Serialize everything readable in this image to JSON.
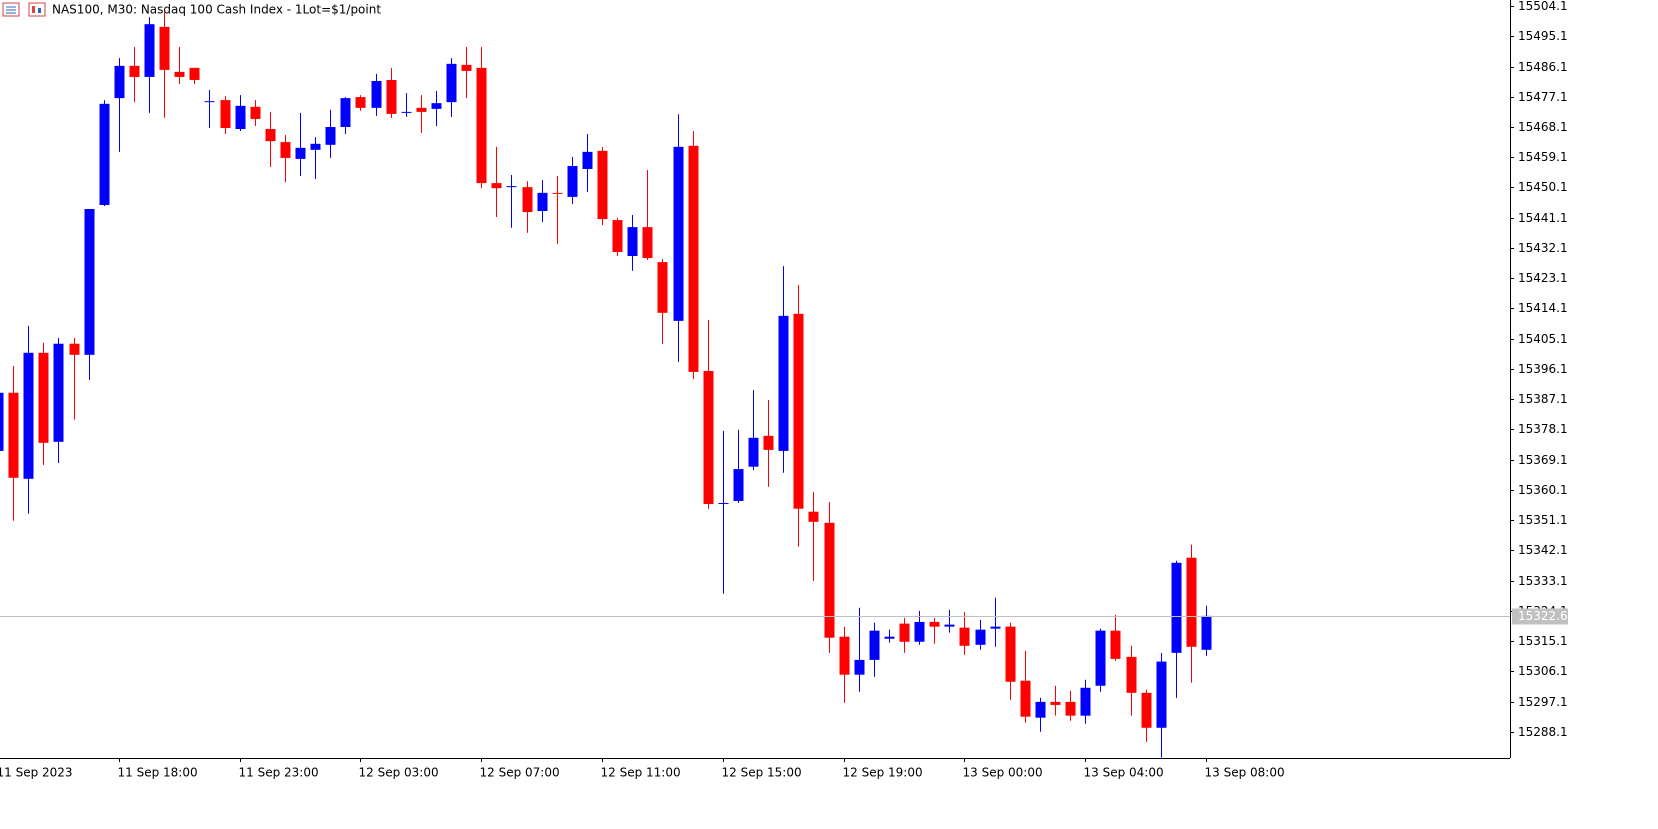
{
  "chart_data": {
    "type": "candlestick",
    "title": "NAS100, M30:  Nasdaq 100 Cash Index - 1Lot=$1/point",
    "categories": [
      "11 Sep 2023",
      null,
      null,
      null,
      null,
      null,
      null,
      null,
      "11 Sep 18:00",
      null,
      null,
      null,
      null,
      null,
      null,
      null,
      "11 Sep 23:00",
      null,
      null,
      null,
      null,
      null,
      null,
      null,
      "12 Sep 03:00",
      null,
      null,
      null,
      null,
      null,
      null,
      null,
      "12 Sep 07:00",
      null,
      null,
      null,
      null,
      null,
      null,
      null,
      "12 Sep 11:00",
      null,
      null,
      null,
      null,
      null,
      null,
      null,
      "12 Sep 15:00",
      null,
      null,
      null,
      null,
      null,
      null,
      null,
      "12 Sep 19:00",
      null,
      null,
      null,
      null,
      null,
      null,
      null,
      "13 Sep 00:00",
      null,
      null,
      null,
      null,
      null,
      null,
      null,
      "13 Sep 04:00",
      null,
      null,
      null,
      null,
      null,
      null,
      null,
      "13 Sep 08:00"
    ],
    "open": [
      15371.7,
      15389.0,
      15363.4,
      15400.9,
      15374.4,
      15403.6,
      15400.3,
      15444.9,
      15476.7,
      15486.3,
      15483.0,
      15497.9,
      15484.5,
      15485.7,
      15475.5,
      15476.1,
      15467.5,
      15474.1,
      15467.5,
      15463.6,
      15458.6,
      15461.3,
      15462.8,
      15468.1,
      15477.0,
      15473.8,
      15482.1,
      15472.3,
      15473.8,
      15473.5,
      15475.5,
      15486.6,
      15485.7,
      15451.4,
      15450.2,
      15450.2,
      15443.1,
      15448.5,
      15447.3,
      15455.6,
      15461.0,
      15440.4,
      15429.7,
      15438.3,
      15427.9,
      15410.4,
      15462.5,
      15395.5,
      15355.9,
      15356.8,
      15367.0,
      15376.2,
      15371.7,
      15412.5,
      15353.6,
      15350.3,
      15316.4,
      15305.1,
      15309.5,
      15315.8,
      15320.3,
      15314.9,
      15320.8,
      15319.4,
      15319.1,
      15314.0,
      15318.8,
      15319.4,
      15303.3,
      15292.3,
      15297.0,
      15297.0,
      15292.9,
      15301.8,
      15318.2,
      15310.4,
      15299.7,
      15289.3,
      15311.6,
      15339.9,
      15312.5
    ],
    "high": [
      15389.0,
      15397.0,
      15408.9,
      15403.9,
      15405.3,
      15405.3,
      15443.7,
      15476.1,
      15488.6,
      15491.9,
      15500.8,
      15502.3,
      15491.9,
      15485.7,
      15479.1,
      15477.3,
      15477.6,
      15476.1,
      15472.6,
      15465.7,
      15472.3,
      15465.1,
      15473.2,
      15477.0,
      15477.6,
      15483.9,
      15485.7,
      15478.2,
      15477.6,
      15478.8,
      15488.6,
      15491.9,
      15491.9,
      15462.2,
      15453.8,
      15452.0,
      15452.3,
      15453.5,
      15459.2,
      15466.0,
      15462.2,
      15441.0,
      15441.9,
      15455.3,
      15428.8,
      15471.9,
      15466.9,
      15410.7,
      15377.7,
      15378.0,
      15389.8,
      15386.9,
      15426.7,
      15421.1,
      15359.5,
      15356.5,
      15319.4,
      15325.0,
      15320.6,
      15318.5,
      15322.0,
      15324.1,
      15322.0,
      15324.4,
      15323.8,
      15321.4,
      15328.0,
      15320.6,
      15312.2,
      15298.2,
      15301.8,
      15300.3,
      15303.6,
      15318.8,
      15322.9,
      15313.7,
      15300.6,
      15311.6,
      15339.0,
      15343.8,
      15325.6
    ],
    "low": [
      15371.7,
      15350.9,
      15353.0,
      15367.5,
      15368.1,
      15381.0,
      15392.8,
      15444.6,
      15460.7,
      15475.5,
      15472.3,
      15470.8,
      15480.9,
      15480.9,
      15467.8,
      15466.0,
      15466.9,
      15468.4,
      15456.2,
      15451.7,
      15453.5,
      15452.6,
      15458.9,
      15466.0,
      15472.9,
      15471.4,
      15470.8,
      15471.1,
      15466.3,
      15468.4,
      15471.1,
      15476.7,
      15449.9,
      15441.3,
      15438.1,
      15436.6,
      15439.8,
      15433.3,
      15445.2,
      15448.8,
      15438.9,
      15429.7,
      15425.3,
      15428.5,
      15403.5,
      15398.2,
      15393.1,
      15354.5,
      15329.2,
      15356.2,
      15366.0,
      15361.0,
      15365.2,
      15343.2,
      15333.0,
      15311.6,
      15296.7,
      15300.0,
      15304.5,
      15314.6,
      15311.6,
      15314.0,
      15314.3,
      15317.6,
      15311.0,
      15312.5,
      15313.4,
      15297.6,
      15290.8,
      15288.1,
      15292.9,
      15291.4,
      15290.5,
      15300.0,
      15309.2,
      15292.9,
      15285.1,
      15280.4,
      15298.2,
      15302.7,
      15310.7
    ],
    "close": [
      15389.0,
      15363.7,
      15400.9,
      15374.1,
      15403.6,
      15400.3,
      15443.7,
      15475.0,
      15486.3,
      15483.0,
      15498.7,
      15485.1,
      15483.0,
      15482.1,
      15475.8,
      15467.8,
      15474.4,
      15470.5,
      15463.9,
      15458.9,
      15461.9,
      15463.1,
      15468.1,
      15476.7,
      15473.8,
      15481.8,
      15472.0,
      15472.6,
      15472.6,
      15475.2,
      15486.9,
      15484.8,
      15451.4,
      15449.9,
      15450.5,
      15442.8,
      15448.5,
      15448.2,
      15456.5,
      15460.7,
      15440.7,
      15430.9,
      15438.3,
      15429.1,
      15412.8,
      15462.2,
      15395.2,
      15355.9,
      15356.2,
      15366.3,
      15375.6,
      15372.0,
      15411.9,
      15354.5,
      15350.6,
      15316.1,
      15305.1,
      15309.5,
      15318.2,
      15316.4,
      15314.9,
      15320.8,
      15319.4,
      15320.0,
      15313.7,
      15318.5,
      15319.4,
      15303.0,
      15292.6,
      15297.0,
      15296.1,
      15292.9,
      15301.2,
      15318.2,
      15309.8,
      15299.7,
      15289.3,
      15309.0,
      15338.4,
      15313.4,
      15322.6
    ],
    "up_color": "#0000ff",
    "down_color": "#ff0000",
    "ylim": [
      15280.3,
      15505.9
    ],
    "yticks": [
      15504.1,
      15495.1,
      15486.1,
      15477.1,
      15468.1,
      15459.1,
      15450.1,
      15441.1,
      15432.1,
      15423.1,
      15414.1,
      15405.1,
      15396.1,
      15387.1,
      15378.1,
      15369.1,
      15360.1,
      15351.1,
      15342.1,
      15333.1,
      15324.1,
      15315.1,
      15306.1,
      15297.1,
      15288.1
    ],
    "last_price": 15322.6,
    "grid": false
  }
}
